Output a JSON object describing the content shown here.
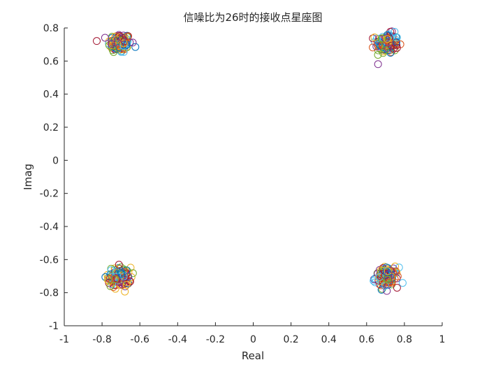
{
  "chart_data": {
    "type": "scatter",
    "title": "信噪比为26时的接收点星座图",
    "xlabel": "Real",
    "ylabel": "Imag",
    "xlim": [
      -1,
      1
    ],
    "ylim": [
      -1,
      0.8
    ],
    "xticks": [
      "-1",
      "-0.8",
      "-0.6",
      "-0.4",
      "-0.2",
      "0",
      "0.2",
      "0.4",
      "0.6",
      "0.8",
      "1"
    ],
    "yticks": [
      "0.8",
      "0.6",
      "0.4",
      "0.2",
      "0",
      "-0.2",
      "-0.4",
      "-0.6",
      "-0.8",
      "-1"
    ],
    "grid": false,
    "marker": "circle",
    "series_colors": [
      "#0072BD",
      "#D95319",
      "#EDB120",
      "#7E2F8E",
      "#77AC30",
      "#4DBEEE",
      "#A2142F"
    ],
    "constellation_points": [
      {
        "x": -0.707,
        "y": 0.707
      },
      {
        "x": 0.707,
        "y": 0.707
      },
      {
        "x": -0.707,
        "y": -0.707
      },
      {
        "x": 0.707,
        "y": -0.707
      }
    ],
    "cluster_spread": 0.05
  }
}
